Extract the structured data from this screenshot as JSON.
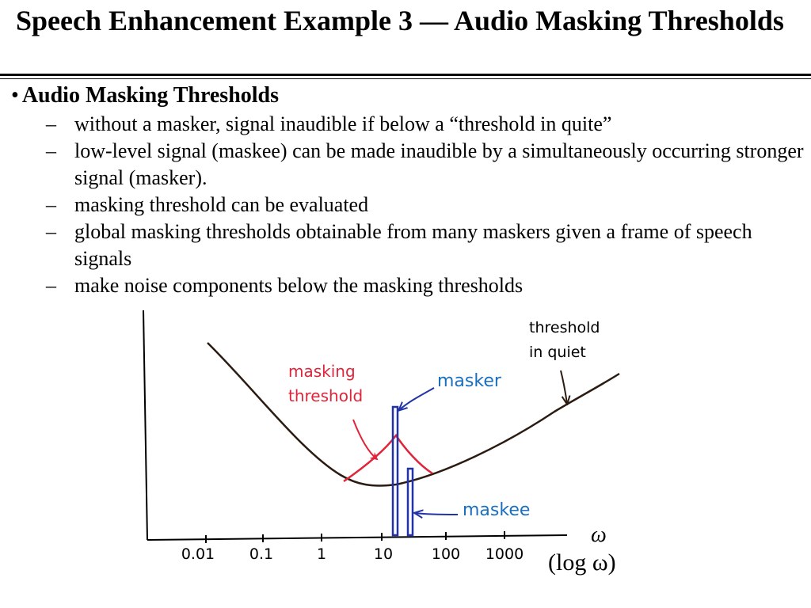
{
  "slide": {
    "title": "Speech Enhancement Example 3 — Audio Masking Thresholds",
    "bullet": "Audio Masking Thresholds",
    "sub_items": [
      "without a masker, signal inaudible if below a “threshold in quite”",
      "low-level signal (maskee) can be made inaudible by a simultaneously occurring stronger signal (masker).",
      "masking threshold can be evaluated",
      "global masking thresholds obtainable from many maskers given a frame of speech signals",
      "make noise components below the masking thresholds"
    ]
  },
  "diagram": {
    "labels": {
      "threshold_in_quiet_line1": "threshold",
      "threshold_in_quiet_line2": "in quiet",
      "masking_threshold_line1": "masking",
      "masking_threshold_line2": "threshold",
      "masker": "masker",
      "maskee": "maskee",
      "omega": "ω",
      "log_omega": "(log ω)"
    },
    "x_ticks": [
      "0.01",
      "0.1",
      "1",
      "10",
      "100",
      "1000"
    ],
    "colors": {
      "curve": "#2b1b12",
      "masking": "#e0253a",
      "masker_bars": "#2233a8",
      "masker_label": "#1a6fbf",
      "maskee_label": "#1a6fbf",
      "masking_label": "#e0253a",
      "axis": "#000000"
    }
  }
}
